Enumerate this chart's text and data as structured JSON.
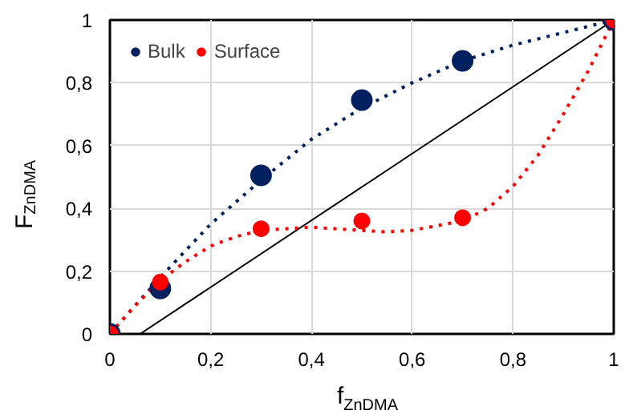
{
  "chart_data": {
    "type": "scatter",
    "xlabel": "f$_{ZnDMA}$",
    "ylabel": "F$_{ZnDMA}$",
    "xlim": [
      0,
      1
    ],
    "ylim": [
      0,
      1
    ],
    "xticks": [
      0,
      {
        "value": 0.2,
        "label": "0,2"
      },
      {
        "value": 0.4,
        "label": "0,4"
      },
      {
        "value": 0.6,
        "label": "0,6"
      },
      {
        "value": 0.8,
        "label": "0,8"
      },
      1
    ],
    "yticks": [
      0,
      {
        "value": 0.2,
        "label": "0,2"
      },
      {
        "value": 0.4,
        "label": "0,4"
      },
      {
        "value": 0.6,
        "label": "0,6"
      },
      {
        "value": 0.8,
        "label": "0,8"
      },
      1
    ],
    "grid": true,
    "legend": "top left",
    "series": [
      {
        "type": "line",
        "color": "#000000",
        "line_style": "solid",
        "marker": "none",
        "x": [
          0.06,
          1
        ],
        "values": [
          0,
          1
        ]
      },
      {
        "type": "line",
        "color": "#002060",
        "line_style": "dotted",
        "marker": "none",
        "x": [
          0,
          0.1,
          0.2,
          0.3,
          0.4,
          0.5,
          0.6,
          0.7,
          0.8,
          0.9,
          1
        ],
        "values": [
          0,
          0.18,
          0.35,
          0.49,
          0.62,
          0.72,
          0.8,
          0.87,
          0.92,
          0.96,
          1
        ]
      },
      {
        "type": "line",
        "color": "#ff0000",
        "line_style": "dotted",
        "marker": "none",
        "x": [
          0,
          0.05,
          0.1,
          0.15,
          0.2,
          0.25,
          0.3,
          0.4,
          0.5,
          0.55,
          0.6,
          0.7,
          0.75,
          0.8,
          0.85,
          0.9,
          0.95,
          1
        ],
        "values": [
          0,
          0.09,
          0.17,
          0.23,
          0.28,
          0.31,
          0.33,
          0.34,
          0.33,
          0.325,
          0.33,
          0.36,
          0.4,
          0.47,
          0.57,
          0.7,
          0.84,
          1
        ]
      },
      {
        "name": "Bulk",
        "color": "#002060",
        "marker": "circle",
        "x": [
          0,
          0.1,
          0.3,
          0.5,
          0.7,
          1
        ],
        "values": [
          0,
          0.145,
          0.505,
          0.745,
          0.87,
          1
        ]
      },
      {
        "name": "Surface",
        "color": "#ff0000",
        "marker": "circle",
        "x": [
          0,
          0.1,
          0.3,
          0.5,
          0.7,
          1
        ],
        "values": [
          0,
          0.165,
          0.335,
          0.36,
          0.37,
          1
        ]
      }
    ]
  }
}
